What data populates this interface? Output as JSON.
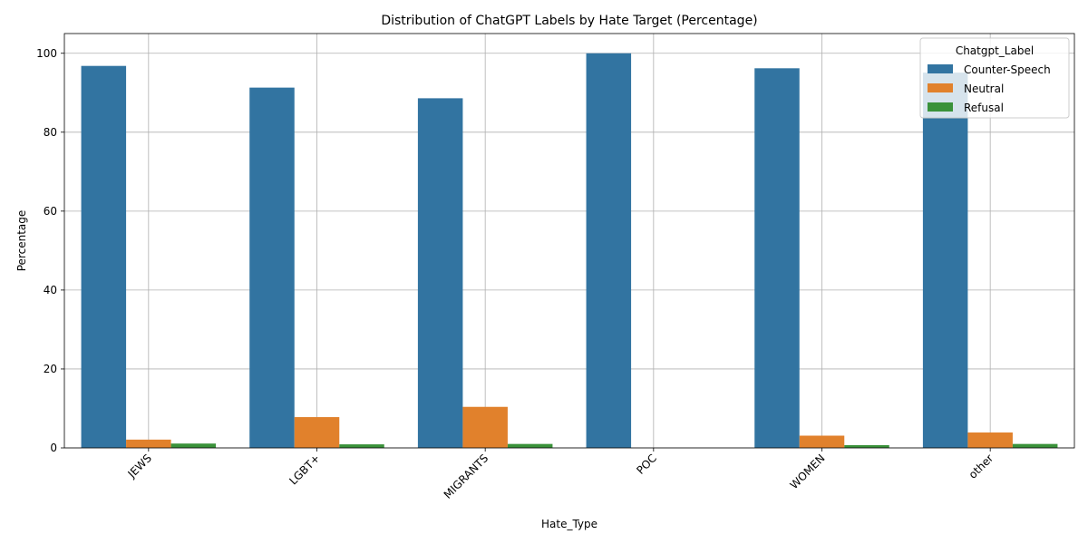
{
  "chart_data": {
    "type": "bar",
    "title": "Distribution of ChatGPT Labels by Hate Target (Percentage)",
    "xlabel": "Hate_Type",
    "ylabel": "Percentage",
    "categories": [
      "JEWS",
      "LGBT+",
      "MIGRANTS",
      "POC",
      "WOMEN",
      "other"
    ],
    "series": [
      {
        "name": "Counter-Speech",
        "color": "#3274a1",
        "values": [
          96.8,
          91.3,
          88.6,
          100.0,
          96.2,
          95.1
        ]
      },
      {
        "name": "Neutral",
        "color": "#e1812c",
        "values": [
          2.1,
          7.8,
          10.4,
          0.0,
          3.1,
          3.9
        ]
      },
      {
        "name": "Refusal",
        "color": "#3a923a",
        "values": [
          1.1,
          0.9,
          1.0,
          0.0,
          0.7,
          1.0
        ]
      }
    ],
    "ylim": [
      0,
      105
    ],
    "yticks": [
      0,
      20,
      40,
      60,
      80,
      100
    ],
    "x_tick_rotation": 45,
    "grid": true,
    "legend": {
      "title": "Chatgpt_Label",
      "placement": "top-right"
    }
  }
}
